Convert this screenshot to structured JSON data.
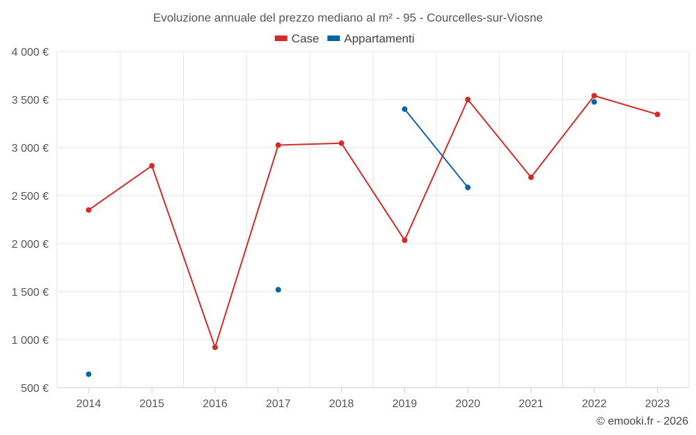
{
  "chart_data": {
    "type": "line",
    "title": "Evoluzione annuale del prezzo mediano al m² - 95 - Courcelles-sur-Viosne",
    "xlabel": "",
    "ylabel": "",
    "categories": [
      "2014",
      "2015",
      "2016",
      "2017",
      "2018",
      "2019",
      "2020",
      "2021",
      "2022",
      "2023"
    ],
    "ylim": [
      500,
      4000
    ],
    "yticks": [
      500,
      1000,
      1500,
      2000,
      2500,
      3000,
      3500,
      4000
    ],
    "ytick_labels": [
      "500 €",
      "1 000 €",
      "1 500 €",
      "2 000 €",
      "2 500 €",
      "3 000 €",
      "3 500 €",
      "4 000 €"
    ],
    "grid": true,
    "legend_position": "top-center",
    "series": [
      {
        "name": "Case",
        "color": "#d32a2a",
        "values": [
          2350,
          2810,
          920,
          3025,
          3045,
          2035,
          3500,
          2690,
          3540,
          3345
        ]
      },
      {
        "name": "Appartamenti",
        "color": "#0b65a0",
        "values": [
          640,
          null,
          null,
          1520,
          null,
          3400,
          2585,
          null,
          3475,
          null
        ]
      }
    ],
    "credit": "© emooki.fr - 2026"
  }
}
